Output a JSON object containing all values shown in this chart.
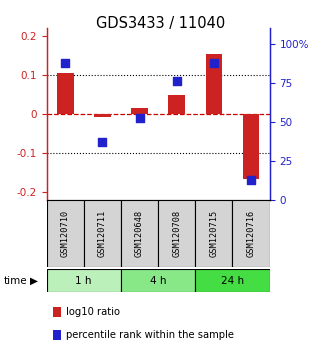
{
  "title": "GDS3433 / 11040",
  "samples": [
    "GSM120710",
    "GSM120711",
    "GSM120648",
    "GSM120708",
    "GSM120715",
    "GSM120716"
  ],
  "log10_ratio": [
    0.105,
    -0.008,
    0.015,
    0.048,
    0.155,
    -0.165
  ],
  "percentile_rank": [
    0.88,
    0.37,
    0.525,
    0.76,
    0.88,
    0.13
  ],
  "groups": [
    {
      "label": "1 h",
      "indices": [
        0,
        1
      ],
      "color": "#bbf0bb"
    },
    {
      "label": "4 h",
      "indices": [
        2,
        3
      ],
      "color": "#88e888"
    },
    {
      "label": "24 h",
      "indices": [
        4,
        5
      ],
      "color": "#44dd44"
    }
  ],
  "ylim_left": [
    -0.22,
    0.22
  ],
  "ylim_right": [
    0,
    1.1
  ],
  "yticks_left": [
    -0.2,
    -0.1,
    0.0,
    0.1,
    0.2
  ],
  "yticks_left_labels": [
    "-0.2",
    "-0.1",
    "0",
    "0.1",
    "0.2"
  ],
  "yticks_right": [
    0.0,
    0.25,
    0.5,
    0.75,
    1.0
  ],
  "yticks_right_labels": [
    "0",
    "25",
    "50",
    "75",
    "100%"
  ],
  "bar_color": "#cc2222",
  "dot_color": "#2222cc",
  "hline_zero_color": "#cc0000",
  "hline_grid_color": "#000000",
  "sample_box_color": "#d4d4d4",
  "bar_width": 0.45,
  "dot_size": 28,
  "time_label": "time",
  "legend_red": "log10 ratio",
  "legend_blue": "percentile rank within the sample",
  "tick_fontsize": 7.5,
  "title_fontsize": 10.5
}
